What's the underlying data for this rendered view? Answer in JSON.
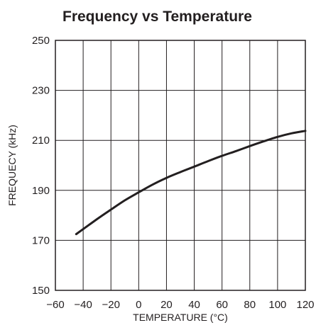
{
  "chart_data": {
    "type": "line",
    "title": "Frequency vs Temperature",
    "xlabel": "TEMPERATURE (°C)",
    "ylabel": "FREQUECY (kHz)",
    "xlim": [
      -60,
      120
    ],
    "ylim": [
      150,
      250
    ],
    "xticks": [
      "−60",
      "−40",
      "−20",
      "0",
      "20",
      "40",
      "60",
      "80",
      "100",
      "120"
    ],
    "yticks": [
      "150",
      "170",
      "190",
      "210",
      "230",
      "250"
    ],
    "grid": true,
    "series": [
      {
        "x": [
          -45,
          -30,
          -20,
          -10,
          0,
          10,
          20,
          30,
          40,
          50,
          60,
          70,
          80,
          90,
          100,
          110,
          120
        ],
        "values": [
          172.5,
          178.5,
          182.3,
          186.0,
          189.2,
          192.3,
          195.0,
          197.3,
          199.5,
          201.7,
          203.8,
          205.7,
          207.7,
          209.6,
          211.4,
          212.8,
          213.8
        ]
      }
    ]
  },
  "style": {
    "ink": "#231f20",
    "background": "#ffffff"
  }
}
